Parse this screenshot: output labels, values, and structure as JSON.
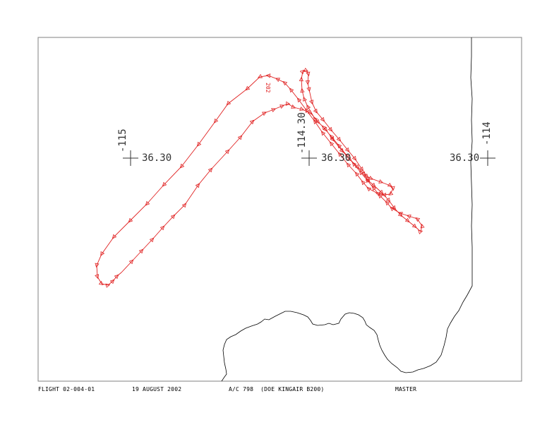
{
  "colors": {
    "track": "#e02020",
    "coastline": "#000000",
    "frame": "#808080",
    "label": "#333333"
  },
  "flight_label": "202",
  "crosses": [
    {
      "lon_label": "-115",
      "lat_label": "36.30"
    },
    {
      "lon_label": "-114.30",
      "lat_label": "36.30"
    },
    {
      "lon_label": "-114",
      "lat_label": "36.30"
    }
  ],
  "footer": {
    "flight": "FLIGHT 02-004-01",
    "date": "19 AUGUST 2002",
    "aircraft": "A/C 798  (DOE KINGAIR B200)",
    "status": "MASTER"
  }
}
